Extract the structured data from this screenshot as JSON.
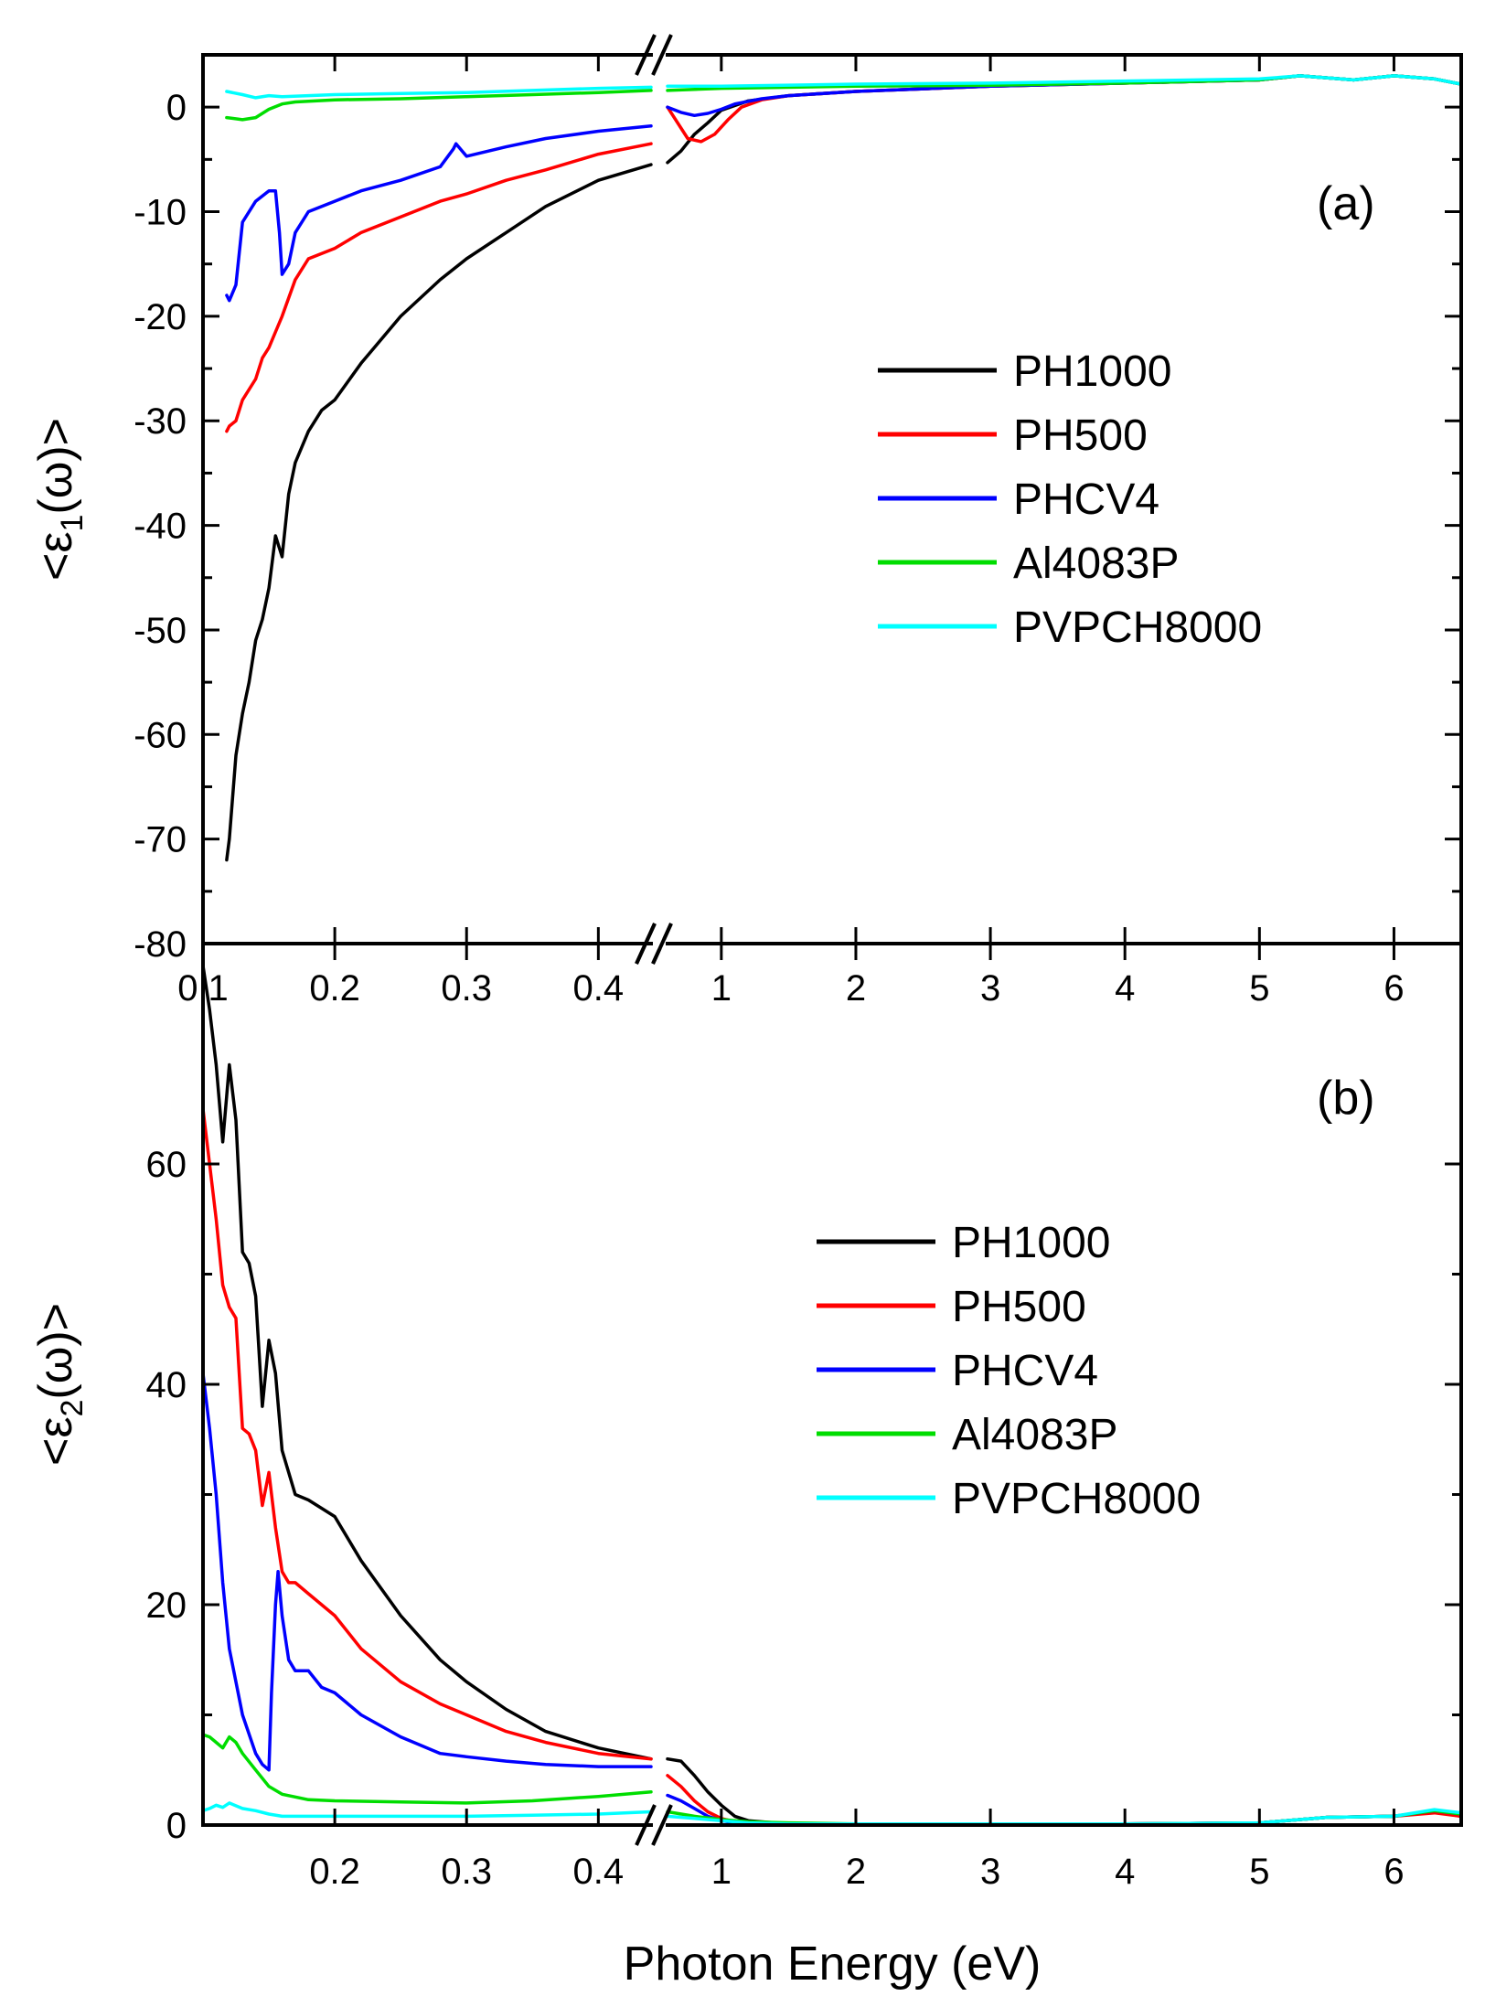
{
  "chart_data": [
    {
      "panel_label": "(a)",
      "type": "line",
      "ylabel": "<ε1(ω)>",
      "xlabel": "",
      "ylim": [
        -80,
        5
      ],
      "yticks": [
        0,
        -10,
        -20,
        -30,
        -40,
        -50,
        -60,
        -70,
        -80
      ],
      "x_break": {
        "left_range": [
          0.1,
          0.44
        ],
        "right_range": [
          0.6,
          6.5
        ]
      },
      "xticks_left": [
        {
          "value": 0.1,
          "label": "0.1"
        },
        {
          "value": 0.2,
          "label": "0.2"
        },
        {
          "value": 0.3,
          "label": "0.3"
        },
        {
          "value": 0.4,
          "label": "0.4"
        }
      ],
      "xticks_right": [
        {
          "value": 1,
          "label": "1"
        },
        {
          "value": 2,
          "label": "2"
        },
        {
          "value": 3,
          "label": "3"
        },
        {
          "value": 4,
          "label": "4"
        },
        {
          "value": 5,
          "label": "5"
        },
        {
          "value": 6,
          "label": "6"
        }
      ],
      "grid": false,
      "legend_position": "right-middle",
      "series": [
        {
          "name": "PH1000",
          "color": "#000000",
          "left": {
            "x": [
              0.118,
              0.12,
              0.125,
              0.13,
              0.135,
              0.14,
              0.145,
              0.15,
              0.155,
              0.16,
              0.165,
              0.17,
              0.18,
              0.19,
              0.2,
              0.22,
              0.25,
              0.28,
              0.3,
              0.33,
              0.36,
              0.4,
              0.44
            ],
            "y": [
              -72,
              -70,
              -62,
              -58,
              -55,
              -51,
              -49,
              -46,
              -41,
              -43,
              -37,
              -34,
              -31,
              -29,
              -28,
              -24.5,
              -20,
              -16.5,
              -14.5,
              -12,
              -9.5,
              -7,
              -5.5
            ]
          },
          "right": {
            "x": [
              0.6,
              0.7,
              0.8,
              0.9,
              1.0,
              1.2,
              1.5,
              2,
              3,
              4,
              5,
              5.3,
              5.7,
              6,
              6.3,
              6.5
            ],
            "y": [
              -5.3,
              -4.2,
              -2.6,
              -1.5,
              -0.3,
              0.6,
              1.1,
              1.5,
              2.0,
              2.3,
              2.6,
              3.0,
              2.6,
              3.0,
              2.7,
              2.2
            ]
          }
        },
        {
          "name": "PH500",
          "color": "#ff0000",
          "left": {
            "x": [
              0.118,
              0.12,
              0.125,
              0.13,
              0.14,
              0.145,
              0.15,
              0.155,
              0.16,
              0.17,
              0.18,
              0.2,
              0.22,
              0.25,
              0.28,
              0.3,
              0.33,
              0.36,
              0.4,
              0.44
            ],
            "y": [
              -31,
              -30.5,
              -30,
              -28,
              -26,
              -24,
              -23,
              -21.5,
              -20,
              -16.5,
              -14.5,
              -13.5,
              -12,
              -10.5,
              -9,
              -8.3,
              -7,
              -6,
              -4.5,
              -3.5
            ]
          },
          "right": {
            "x": [
              0.6,
              0.7,
              0.75,
              0.85,
              0.95,
              1.05,
              1.15,
              1.3,
              1.5,
              2,
              3,
              4,
              5,
              5.3,
              5.7,
              6,
              6.3,
              6.5
            ],
            "y": [
              0,
              -2,
              -3,
              -3.3,
              -2.6,
              -1.2,
              0,
              0.7,
              1.1,
              1.5,
              2.0,
              2.3,
              2.6,
              3.0,
              2.6,
              3.0,
              2.7,
              2.2
            ]
          }
        },
        {
          "name": "PHCV4",
          "color": "#0000ff",
          "left": {
            "x": [
              0.118,
              0.12,
              0.125,
              0.13,
              0.14,
              0.15,
              0.155,
              0.158,
              0.16,
              0.165,
              0.17,
              0.18,
              0.2,
              0.22,
              0.25,
              0.28,
              0.29,
              0.292,
              0.3,
              0.33,
              0.36,
              0.4,
              0.44
            ],
            "y": [
              -18,
              -18.5,
              -17,
              -11,
              -9,
              -8,
              -8,
              -12,
              -16,
              -15,
              -12,
              -10,
              -9,
              -8,
              -7,
              -5.7,
              -4,
              -3.5,
              -4.7,
              -3.8,
              -3,
              -2.3,
              -1.8
            ]
          },
          "right": {
            "x": [
              0.6,
              0.7,
              0.8,
              0.9,
              1.0,
              1.1,
              1.3,
              1.5,
              2,
              3,
              4,
              5,
              5.3,
              5.7,
              6,
              6.3,
              6.5
            ],
            "y": [
              0,
              -0.5,
              -0.8,
              -0.6,
              -0.2,
              0.3,
              0.8,
              1.1,
              1.5,
              2.0,
              2.3,
              2.6,
              3.0,
              2.6,
              3.0,
              2.7,
              2.2
            ]
          }
        },
        {
          "name": "Al4083P",
          "color": "#00dd00",
          "left": {
            "x": [
              0.118,
              0.13,
              0.14,
              0.15,
              0.16,
              0.17,
              0.2,
              0.25,
              0.3,
              0.35,
              0.4,
              0.44
            ],
            "y": [
              -1.0,
              -1.2,
              -1.0,
              -0.2,
              0.3,
              0.5,
              0.7,
              0.8,
              1.0,
              1.2,
              1.4,
              1.6
            ]
          },
          "right": {
            "x": [
              0.6,
              1,
              2,
              3,
              4,
              5,
              5.3,
              5.7,
              6,
              6.3,
              6.5
            ],
            "y": [
              1.6,
              1.8,
              2.0,
              2.1,
              2.3,
              2.6,
              3.0,
              2.6,
              3.0,
              2.7,
              2.2
            ]
          }
        },
        {
          "name": "PVPCH8000",
          "color": "#00ffff",
          "left": {
            "x": [
              0.118,
              0.13,
              0.14,
              0.15,
              0.16,
              0.2,
              0.25,
              0.3,
              0.35,
              0.4,
              0.44
            ],
            "y": [
              1.5,
              1.2,
              0.9,
              1.1,
              1.0,
              1.2,
              1.3,
              1.4,
              1.6,
              1.8,
              1.9
            ]
          },
          "right": {
            "x": [
              0.6,
              1,
              2,
              3,
              4,
              5,
              5.3,
              5.7,
              6,
              6.3,
              6.5
            ],
            "y": [
              2.0,
              2.0,
              2.2,
              2.3,
              2.5,
              2.7,
              3.0,
              2.6,
              3.0,
              2.7,
              2.2
            ]
          }
        }
      ],
      "legend": {
        "entries": [
          "PH1000",
          "PH500",
          "PHCV4",
          "Al4083P",
          "PVPCH8000"
        ]
      }
    },
    {
      "panel_label": "(b)",
      "type": "line",
      "ylabel": "<ε2(ω)>",
      "xlabel": "Photon Energy (eV)",
      "ylim": [
        0,
        80
      ],
      "yticks": [
        0,
        20,
        40,
        60
      ],
      "x_break": {
        "left_range": [
          0.1,
          0.44
        ],
        "right_range": [
          0.6,
          6.5
        ]
      },
      "xticks_left": [
        {
          "value": 0.2,
          "label": "0.2"
        },
        {
          "value": 0.3,
          "label": "0.3"
        },
        {
          "value": 0.4,
          "label": "0.4"
        }
      ],
      "xticks_right": [
        {
          "value": 1,
          "label": "1"
        },
        {
          "value": 2,
          "label": "2"
        },
        {
          "value": 3,
          "label": "3"
        },
        {
          "value": 4,
          "label": "4"
        },
        {
          "value": 5,
          "label": "5"
        },
        {
          "value": 6,
          "label": "6"
        }
      ],
      "grid": false,
      "legend_position": "right-middle",
      "series": [
        {
          "name": "PH1000",
          "color": "#000000",
          "left": {
            "x": [
              0.1,
              0.105,
              0.11,
              0.115,
              0.12,
              0.125,
              0.13,
              0.135,
              0.14,
              0.145,
              0.15,
              0.155,
              0.16,
              0.165,
              0.17,
              0.18,
              0.2,
              0.22,
              0.25,
              0.28,
              0.3,
              0.33,
              0.36,
              0.4,
              0.44
            ],
            "y": [
              78,
              74,
              69,
              62,
              69,
              64,
              52,
              51,
              48,
              38,
              44,
              41,
              34,
              32,
              30,
              29.5,
              28,
              24,
              19,
              15,
              13,
              10.5,
              8.5,
              7,
              6
            ]
          },
          "right": {
            "x": [
              0.6,
              0.7,
              0.8,
              0.9,
              1.0,
              1.1,
              1.2,
              1.4,
              1.6,
              2,
              3,
              4,
              5,
              5.5,
              6,
              6.3,
              6.5
            ],
            "y": [
              6,
              5.8,
              4.5,
              3,
              1.8,
              0.8,
              0.4,
              0.2,
              0.1,
              0.1,
              0.1,
              0.1,
              0.2,
              0.7,
              0.8,
              1.2,
              0.8
            ]
          }
        },
        {
          "name": "PH500",
          "color": "#ff0000",
          "left": {
            "x": [
              0.1,
              0.105,
              0.11,
              0.115,
              0.12,
              0.125,
              0.13,
              0.135,
              0.14,
              0.145,
              0.15,
              0.155,
              0.16,
              0.165,
              0.17,
              0.18,
              0.2,
              0.22,
              0.25,
              0.28,
              0.3,
              0.33,
              0.36,
              0.4,
              0.44
            ],
            "y": [
              65,
              60,
              55,
              49,
              47,
              46,
              36,
              35.5,
              34,
              29,
              32,
              27,
              23,
              22,
              22,
              21,
              19,
              16,
              13,
              11,
              10,
              8.5,
              7.5,
              6.5,
              6
            ]
          },
          "right": {
            "x": [
              0.6,
              0.7,
              0.8,
              0.9,
              1.0,
              1.1,
              1.2,
              1.4,
              1.6,
              2,
              3,
              4,
              5,
              5.5,
              6,
              6.3,
              6.5
            ],
            "y": [
              4.5,
              3.5,
              2.2,
              1.2,
              0.6,
              0.3,
              0.2,
              0.1,
              0.1,
              0.1,
              0.1,
              0.1,
              0.2,
              0.7,
              0.8,
              1.1,
              0.8
            ]
          }
        },
        {
          "name": "PHCV4",
          "color": "#0000ff",
          "left": {
            "x": [
              0.1,
              0.105,
              0.11,
              0.115,
              0.12,
              0.13,
              0.14,
              0.145,
              0.15,
              0.152,
              0.155,
              0.157,
              0.16,
              0.165,
              0.17,
              0.18,
              0.19,
              0.2,
              0.22,
              0.25,
              0.28,
              0.3,
              0.33,
              0.36,
              0.4,
              0.44
            ],
            "y": [
              41,
              36,
              30,
              22,
              16,
              10,
              6.5,
              5.5,
              5,
              12,
              20,
              23,
              19,
              15,
              14,
              14,
              12.5,
              12,
              10,
              8,
              6.5,
              6.2,
              5.8,
              5.5,
              5.3,
              5.3
            ]
          },
          "right": {
            "x": [
              0.6,
              0.7,
              0.8,
              0.9,
              1.0,
              1.1,
              1.2,
              1.4,
              1.6,
              2,
              3,
              4,
              5,
              5.5,
              6,
              6.3,
              6.5
            ],
            "y": [
              2.7,
              2.2,
              1.5,
              0.8,
              0.4,
              0.2,
              0.1,
              0.1,
              0.1,
              0.1,
              0.1,
              0.1,
              0.2,
              0.7,
              0.8,
              1.3,
              1
            ]
          }
        },
        {
          "name": "Al4083P",
          "color": "#00dd00",
          "left": {
            "x": [
              0.1,
              0.105,
              0.11,
              0.115,
              0.12,
              0.125,
              0.13,
              0.14,
              0.15,
              0.16,
              0.18,
              0.2,
              0.25,
              0.3,
              0.35,
              0.4,
              0.44
            ],
            "y": [
              8.2,
              8,
              7.5,
              7,
              8,
              7.5,
              6.5,
              5,
              3.5,
              2.8,
              2.3,
              2.2,
              2.1,
              2.0,
              2.2,
              2.6,
              3
            ]
          },
          "right": {
            "x": [
              0.6,
              0.8,
              1.0,
              1.2,
              1.5,
              2,
              3,
              4,
              5,
              5.5,
              6,
              6.3,
              6.5
            ],
            "y": [
              1.2,
              0.8,
              0.5,
              0.3,
              0.2,
              0.1,
              0.1,
              0.1,
              0.2,
              0.7,
              0.8,
              1.3,
              1
            ]
          }
        },
        {
          "name": "PVPCH8000",
          "color": "#00ffff",
          "left": {
            "x": [
              0.1,
              0.105,
              0.11,
              0.115,
              0.12,
              0.13,
              0.14,
              0.15,
              0.16,
              0.2,
              0.25,
              0.3,
              0.35,
              0.4,
              0.44
            ],
            "y": [
              1.3,
              1.5,
              1.8,
              1.6,
              2.0,
              1.5,
              1.3,
              1.0,
              0.8,
              0.8,
              0.8,
              0.8,
              0.9,
              1.0,
              1.2
            ]
          },
          "right": {
            "x": [
              0.6,
              0.8,
              1.0,
              1.2,
              1.5,
              2,
              3,
              4,
              5,
              5.5,
              6,
              6.3,
              6.5
            ],
            "y": [
              0.8,
              0.6,
              0.4,
              0.2,
              0.1,
              0.1,
              0.1,
              0.1,
              0.2,
              0.7,
              0.8,
              1.4,
              1.1
            ]
          }
        }
      ],
      "legend": {
        "entries": [
          "PH1000",
          "PH500",
          "PHCV4",
          "Al4083P",
          "PVPCH8000"
        ]
      }
    }
  ]
}
